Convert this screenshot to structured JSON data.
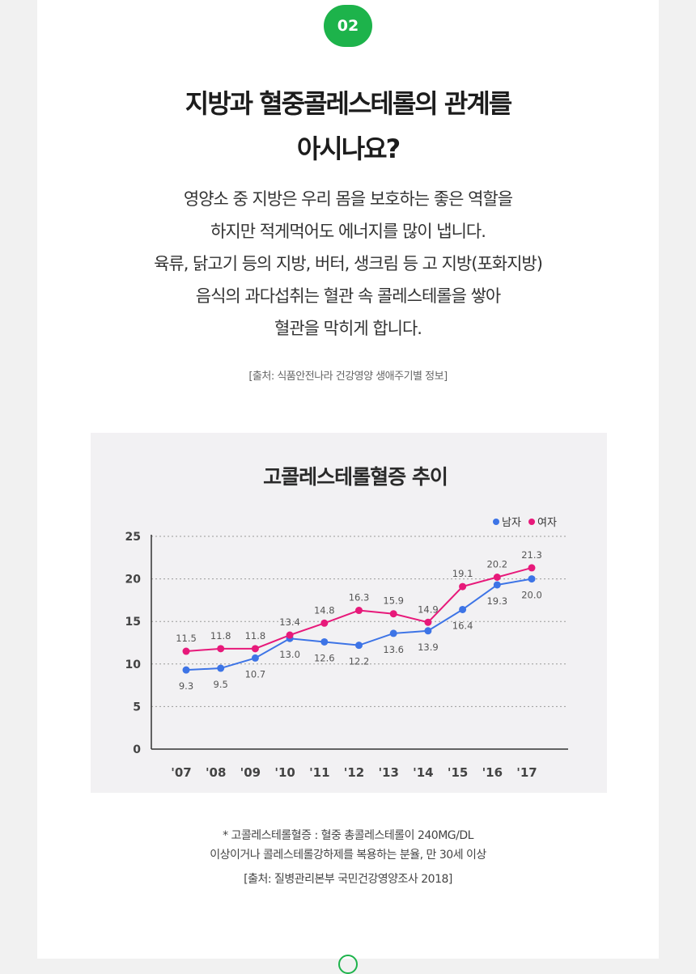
{
  "badge": "02",
  "title_lines": [
    "지방과 혈중콜레스테롤의 관계를",
    "아시나요?"
  ],
  "description_lines": [
    "영양소 중 지방은 우리 몸을 보호하는 좋은 역할을",
    "하지만 적게먹어도 에너지를 많이 냅니다.",
    "육류, 닭고기 등의 지방, 버터, 생크림 등 고 지방(포화지방)",
    "음식의 과다섭취는 혈관 속 콜레스테롤을 쌓아",
    "혈관을 막히게 합니다."
  ],
  "source_top": "[출처: 식품안전나라 건강영양 생애주기별 정보]",
  "footnote": {
    "line1": "* 고콜레스테롤혈증 : 혈중 총콜레스테롤이 240MG/DL",
    "line2": "이상이거나 콜레스테롤강하제를 복용하는 분율, 만 30세 이상",
    "source": "[출처: 질병관리본부 국민건강영양조사 2018]"
  },
  "colors": {
    "accent_green": "#1db34b",
    "male": "#3d74e6",
    "female": "#e7197a",
    "chart_bg": "#f2f1f3"
  },
  "chart_data": {
    "type": "line",
    "title": "고콜레스테롤혈증 추이",
    "categories": [
      "'07",
      "'08",
      "'09",
      "'10",
      "'11",
      "'12",
      "'13",
      "'14",
      "'15",
      "'16",
      "'17"
    ],
    "series": [
      {
        "name": "남자",
        "values": [
          9.3,
          9.5,
          10.7,
          13.0,
          12.6,
          12.2,
          13.6,
          13.9,
          16.4,
          19.3,
          20.0
        ]
      },
      {
        "name": "여자",
        "values": [
          11.5,
          11.8,
          11.8,
          13.4,
          14.8,
          16.3,
          15.9,
          14.9,
          19.1,
          20.2,
          21.3
        ]
      }
    ],
    "y_ticks": [
      "0",
      "5",
      "10",
      "15",
      "20",
      "25"
    ],
    "ylim": [
      0,
      25
    ],
    "grid": "dotted horizontal",
    "legend_position": "top-right",
    "xlabel": "",
    "ylabel": ""
  }
}
